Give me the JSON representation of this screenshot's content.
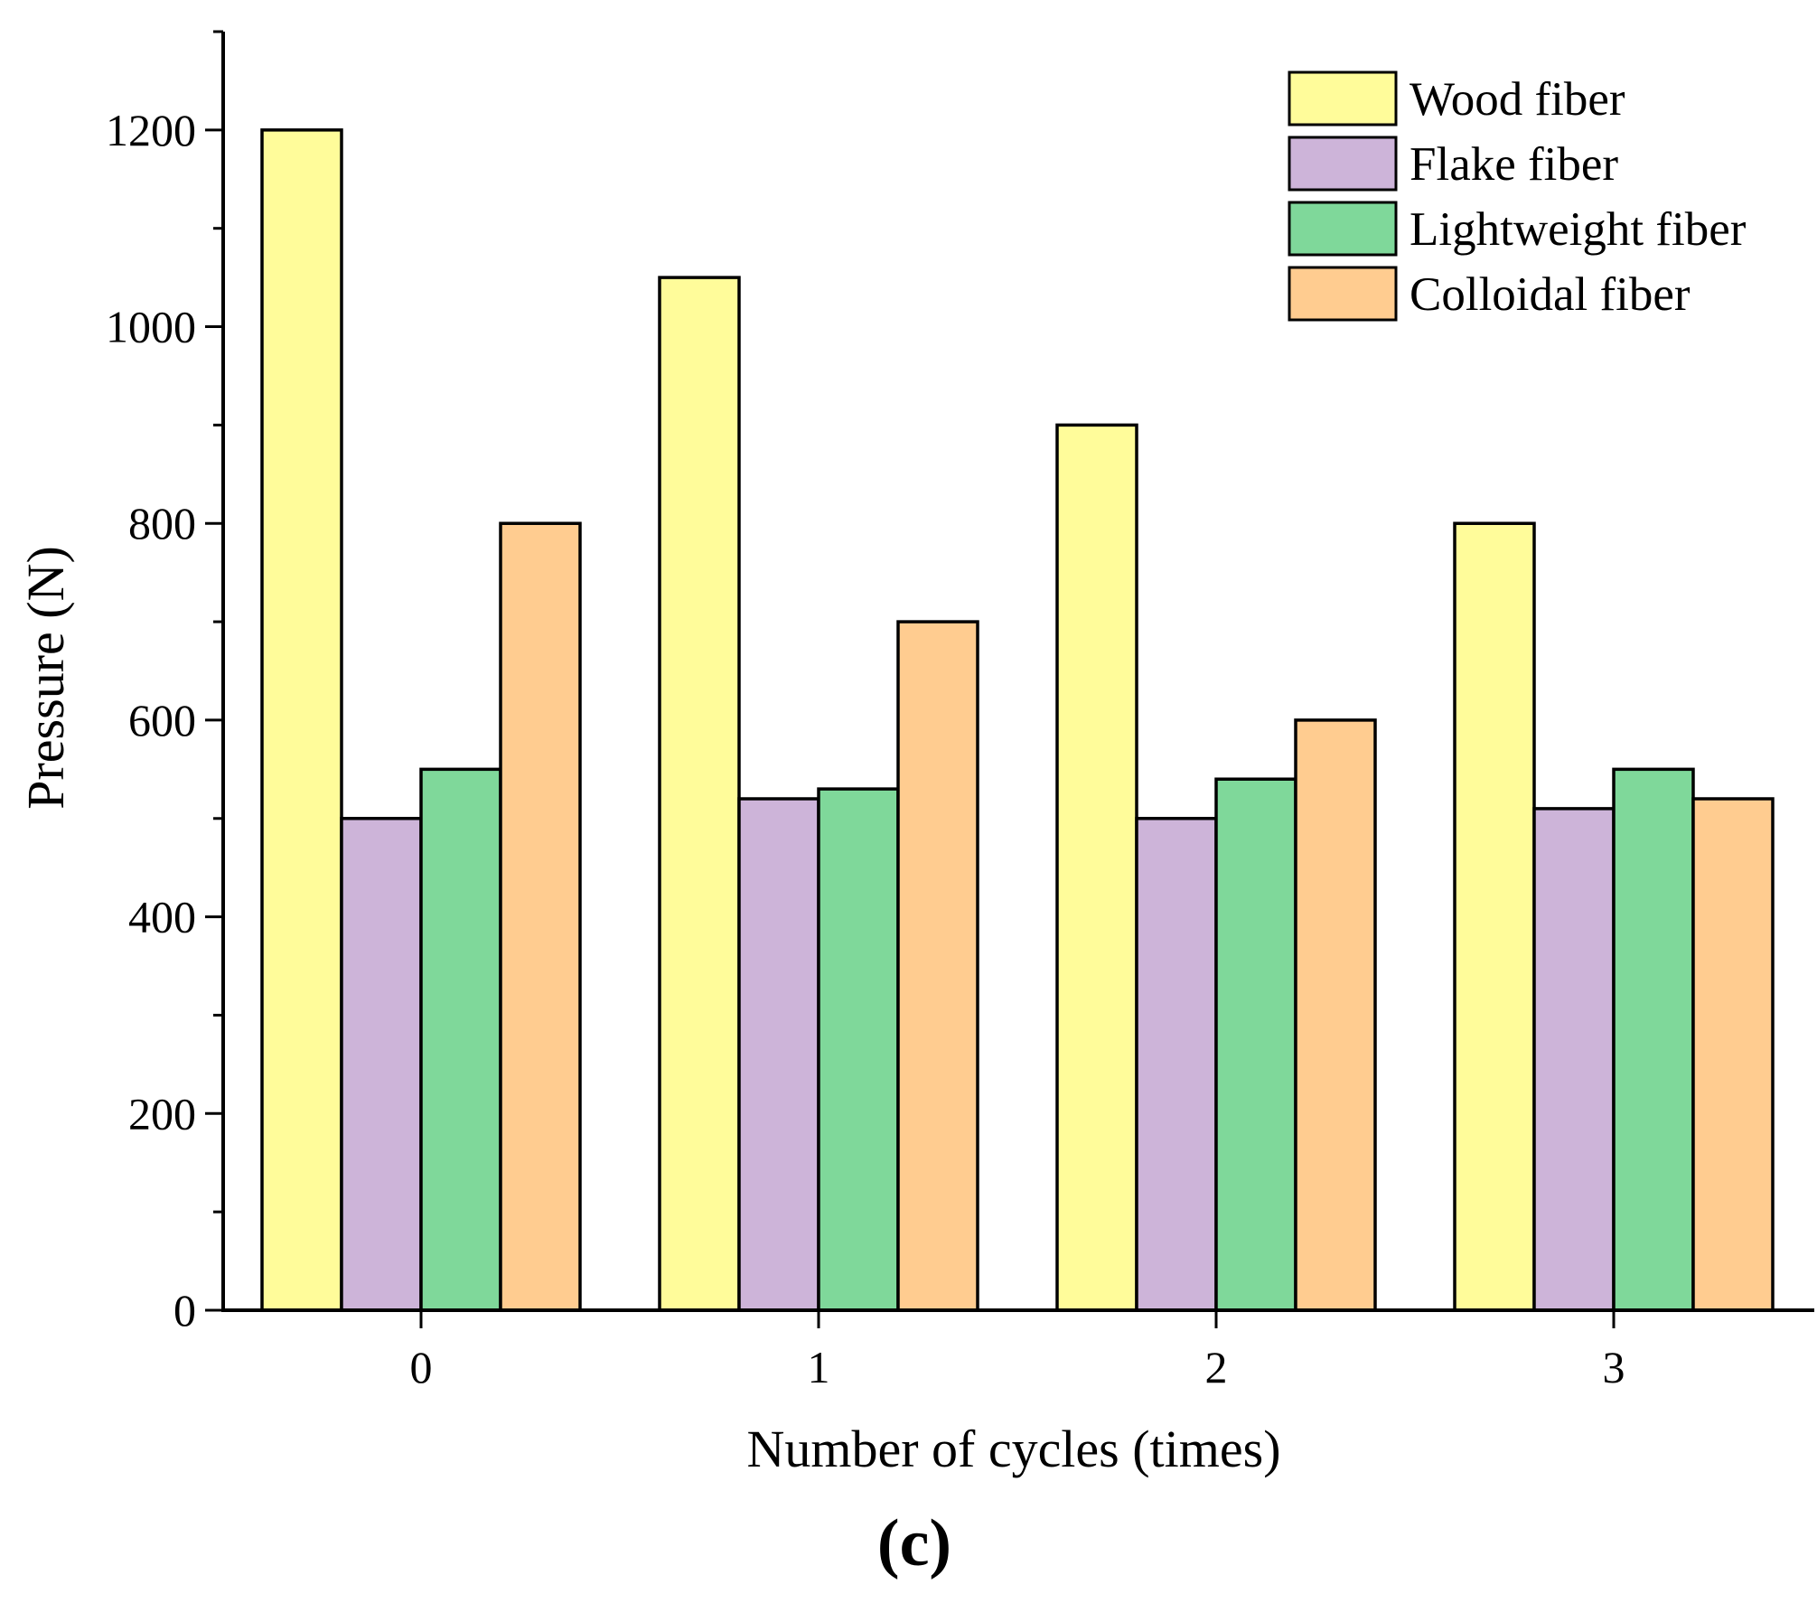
{
  "chart_data": {
    "type": "bar",
    "title": "",
    "xlabel": "Number of cycles (times)",
    "ylabel": "Pressure (N)",
    "categories": [
      "0",
      "1",
      "2",
      "3"
    ],
    "yticks": [
      "0",
      "200",
      "400",
      "600",
      "800",
      "1000",
      "1200"
    ],
    "ylim": [
      0,
      1300
    ],
    "grid": false,
    "legend_position": "top-right",
    "series": [
      {
        "name": "Wood fiber",
        "color": "#FFFC9A",
        "values": [
          1200,
          1050,
          900,
          800
        ]
      },
      {
        "name": "Flake fiber",
        "color": "#CDB4D9",
        "values": [
          500,
          520,
          500,
          510
        ]
      },
      {
        "name": "Lightweight fiber",
        "color": "#7FD89A",
        "values": [
          550,
          530,
          540,
          550
        ]
      },
      {
        "name": "Colloidal fiber",
        "color": "#FFCC90",
        "values": [
          800,
          700,
          600,
          520
        ]
      }
    ],
    "panel_label": "(c)"
  }
}
